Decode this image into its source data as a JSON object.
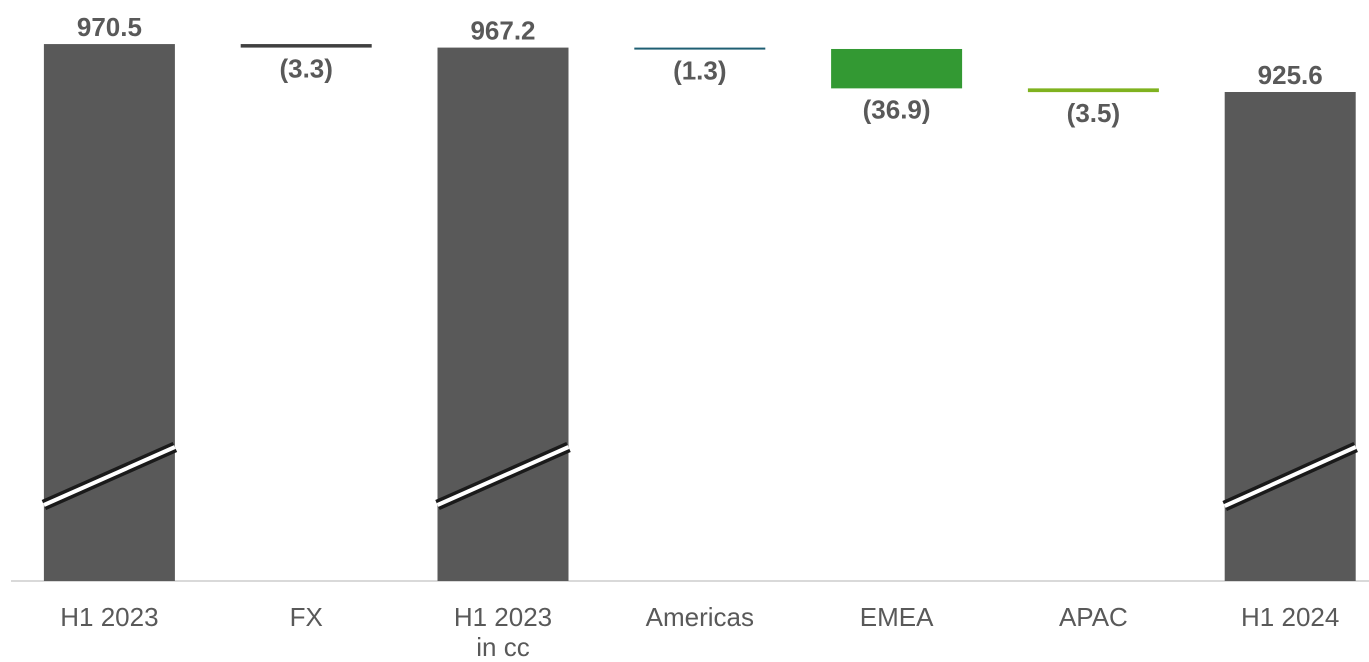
{
  "chart_data": {
    "type": "bar",
    "subtype": "waterfall",
    "y_axis_broken": true,
    "categories": [
      {
        "lines": [
          "H1 2023"
        ]
      },
      {
        "lines": [
          "FX"
        ]
      },
      {
        "lines": [
          "H1 2023",
          "in cc"
        ]
      },
      {
        "lines": [
          "Americas"
        ]
      },
      {
        "lines": [
          "EMEA"
        ]
      },
      {
        "lines": [
          "APAC"
        ]
      },
      {
        "lines": [
          "H1 2024"
        ]
      }
    ],
    "bars": [
      {
        "kind": "total",
        "value": 970.5,
        "label": "970.5",
        "color": "#595959"
      },
      {
        "kind": "delta",
        "value": -3.3,
        "label": "(3.3)",
        "color": "#404040"
      },
      {
        "kind": "total",
        "value": 967.2,
        "label": "967.2",
        "color": "#595959"
      },
      {
        "kind": "delta",
        "value": -1.3,
        "label": "(1.3)",
        "color": "#1f5f73"
      },
      {
        "kind": "delta",
        "value": -36.9,
        "label": "(36.9)",
        "color": "#339933"
      },
      {
        "kind": "delta",
        "value": -3.5,
        "label": "(3.5)",
        "color": "#7fb21f"
      },
      {
        "kind": "total",
        "value": 925.6,
        "label": "925.6",
        "color": "#595959"
      }
    ],
    "axis_color": "#d9d9d9",
    "label_color": "#595959"
  }
}
